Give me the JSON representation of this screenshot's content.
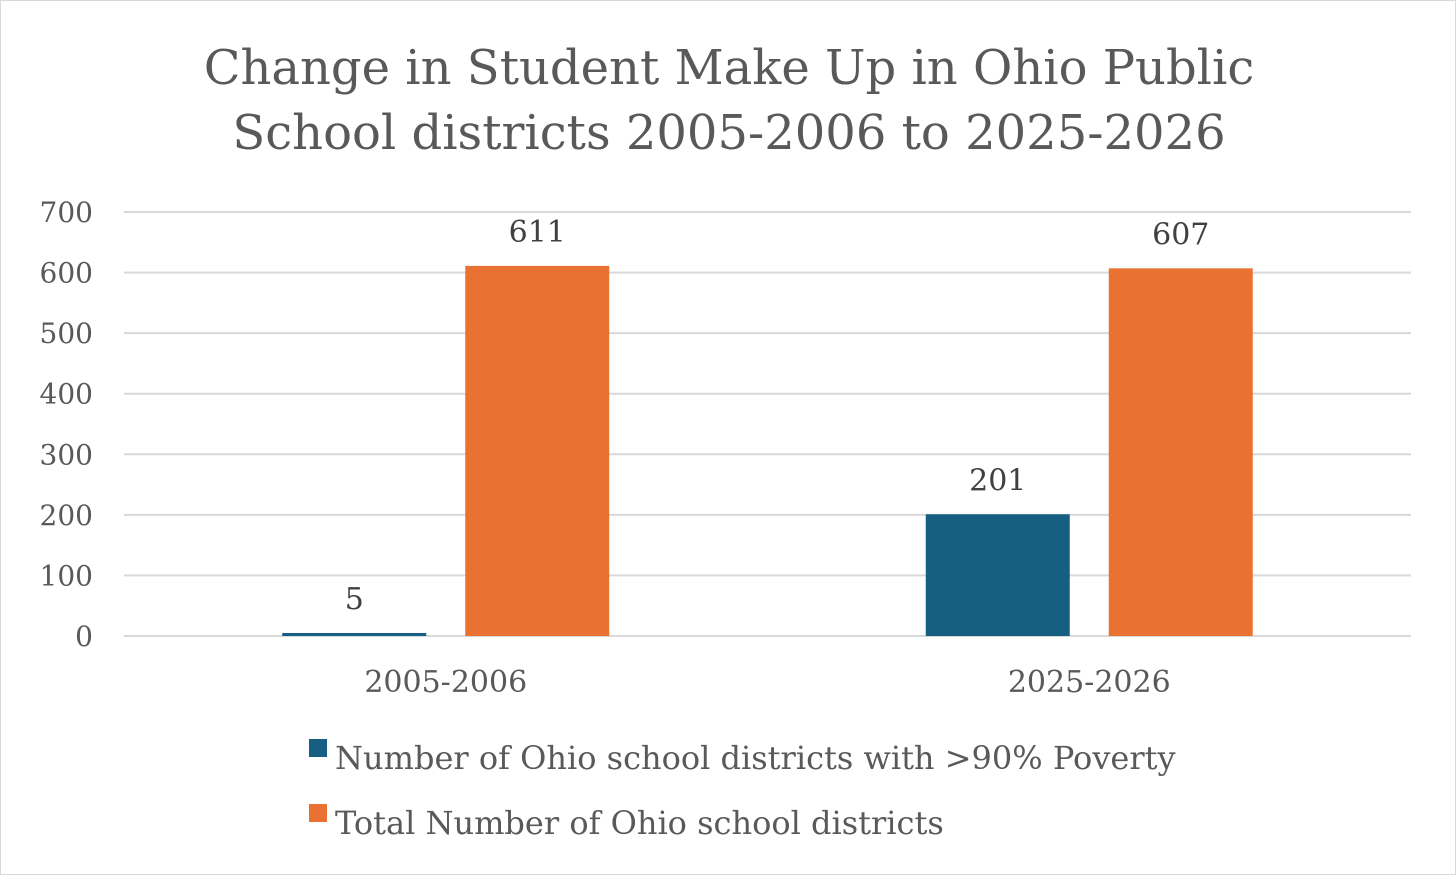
{
  "chart_data": {
    "type": "bar",
    "title_lines": [
      "Change in Student Make Up in Ohio Public",
      "School districts 2005-2006 to 2025-2026"
    ],
    "categories": [
      "2005-2006",
      "2025-2026"
    ],
    "series": [
      {
        "name": "Number of Ohio school districts with >90% Poverty",
        "values": [
          5,
          201
        ],
        "color": "#175E83"
      },
      {
        "name": "Total Number of Ohio school districts",
        "values": [
          611,
          607
        ],
        "color": "#E97132"
      }
    ],
    "data_labels": [
      [
        "5",
        "201"
      ],
      [
        "611",
        "607"
      ]
    ],
    "ylim": [
      0,
      700
    ],
    "yticks": [
      0,
      100,
      200,
      300,
      400,
      500,
      600,
      700
    ],
    "ytick_labels": [
      "0",
      "100",
      "200",
      "300",
      "400",
      "500",
      "600",
      "700"
    ],
    "xlabel": "",
    "ylabel": "",
    "grid": true,
    "legend_position": "bottom"
  }
}
